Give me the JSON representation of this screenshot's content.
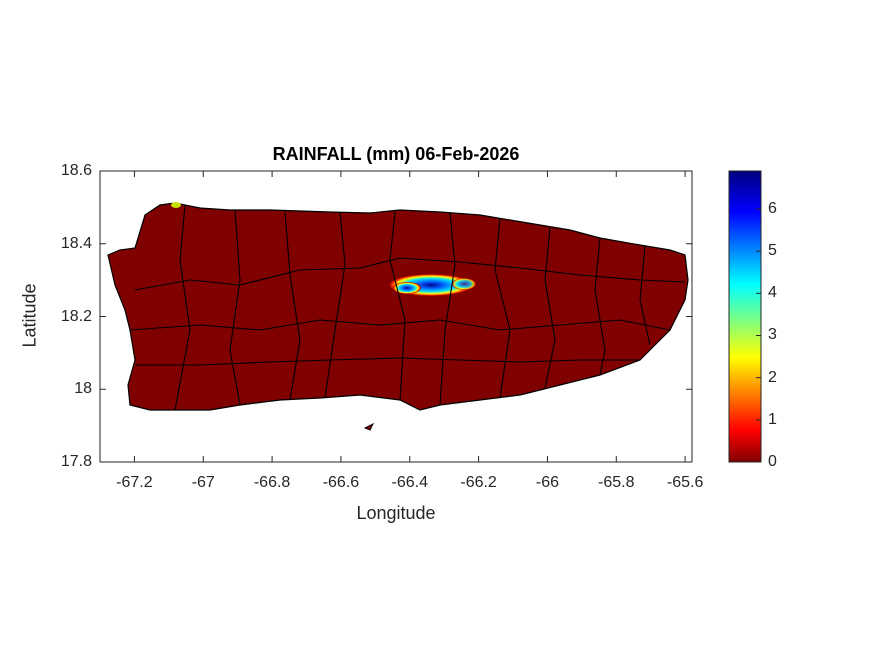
{
  "chart_data": {
    "type": "heatmap",
    "title": "RAINFALL (mm) 06-Feb-2026",
    "xlabel": "Longitude",
    "ylabel": "Latitude",
    "xlim": [
      -67.3,
      -65.58
    ],
    "ylim": [
      17.8,
      18.6
    ],
    "xticks": [
      "-67.2",
      "-67",
      "-66.8",
      "-66.6",
      "-66.4",
      "-66.2",
      "-66",
      "-65.8",
      "-65.6"
    ],
    "yticks": [
      "18.6",
      "18.4",
      "18.2",
      "18",
      "17.8"
    ],
    "colorbar": {
      "ticks": [
        "0",
        "1",
        "2",
        "3",
        "4",
        "5",
        "6"
      ],
      "range": [
        0,
        6.9
      ],
      "colormap": "jet"
    },
    "background_value": 0,
    "rain_maxima": [
      {
        "lon": -66.32,
        "lat": 18.29,
        "value": 6.9
      },
      {
        "lon": -66.4,
        "lat": 18.27,
        "value": 4.5
      },
      {
        "lon": -67.08,
        "lat": 18.51,
        "value": 3
      }
    ],
    "grid": false,
    "colors": {
      "zero": "#800000",
      "boundary": "#000000"
    }
  }
}
